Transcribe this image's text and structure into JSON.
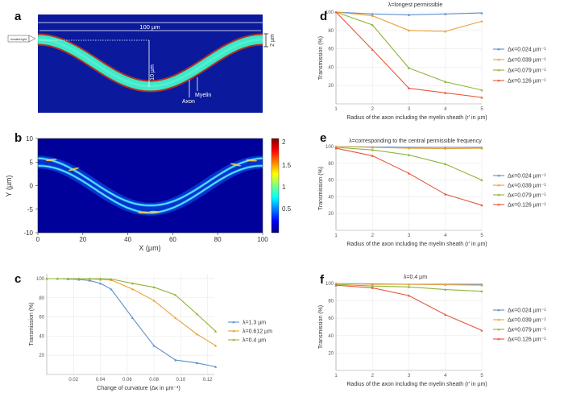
{
  "panel_a": {
    "letter": "a",
    "label_100um": "100 µm",
    "label_10um": "10 µm",
    "label_2um": "2 µm",
    "label_incident": "Incident light",
    "label_myelin": "Myelin",
    "label_axon": "Axon",
    "colors": {
      "bg": "#0b1a9c",
      "core": "#3ee8c8",
      "sheath": "#b03024"
    }
  },
  "panel_b": {
    "letter": "b",
    "xlabel": "X (µm)",
    "ylabel": "Y (µm)",
    "xticks": [
      "0",
      "20",
      "40",
      "60",
      "80",
      "100"
    ],
    "yticks": [
      "10",
      "5",
      "0",
      "-5",
      "-10"
    ],
    "cbar_ticks": [
      "2",
      "1.5",
      "1",
      "0.5"
    ]
  },
  "chart_data": [
    {
      "panel": "c",
      "type": "line",
      "title": "",
      "xlabel": "Change of curvature (Δκ in µm⁻¹)",
      "ylabel": "Transmission (%)",
      "xlim": [
        0,
        0.125
      ],
      "ylim": [
        0,
        105
      ],
      "xticks": [
        0.02,
        0.04,
        0.06,
        0.08,
        0.1,
        0.12
      ],
      "xtick_labels": [
        "0.02",
        "0.04",
        "0.06",
        "0.08",
        "0.10",
        "0.12"
      ],
      "yticks": [
        20,
        40,
        60,
        80,
        100
      ],
      "legend_position": "right",
      "x": [
        0.0,
        0.008,
        0.016,
        0.024,
        0.032,
        0.04,
        0.048,
        0.064,
        0.08,
        0.096,
        0.112,
        0.126
      ],
      "series": [
        {
          "name": "λ=1.3 µm",
          "color": "#5b8fc9",
          "values": [
            100,
            100,
            99.5,
            99,
            98,
            95,
            89,
            59,
            30,
            15,
            12,
            8
          ]
        },
        {
          "name": "λ=0.612 µm",
          "color": "#e8a33a",
          "values": [
            100,
            100,
            100,
            100,
            99.5,
            99,
            98.5,
            89,
            77,
            59,
            42,
            30
          ]
        },
        {
          "name": "λ=0.4 µm",
          "color": "#8fb43a",
          "values": [
            100,
            100,
            100,
            100,
            100,
            100,
            99.5,
            95,
            91,
            83,
            63,
            45
          ]
        }
      ]
    },
    {
      "panel": "d",
      "type": "line",
      "title": "λ=longest permissible",
      "xlabel": "Radius of the axon including the myelin sheath (r' in µm)",
      "ylabel": "Transmission (%)",
      "xlim": [
        1,
        5
      ],
      "ylim": [
        0,
        100
      ],
      "xticks": [
        1,
        2,
        3,
        4,
        5
      ],
      "yticks": [
        20,
        40,
        60,
        80,
        100
      ],
      "legend_position": "right",
      "x": [
        1,
        2,
        3,
        4,
        5
      ],
      "series": [
        {
          "name": "Δκ=0.024 µm⁻¹",
          "color": "#5b8fc9",
          "values": [
            100,
            98,
            97,
            98,
            99
          ]
        },
        {
          "name": "Δκ=0.039 µm⁻¹",
          "color": "#e8a33a",
          "values": [
            100,
            96,
            80,
            79,
            90
          ]
        },
        {
          "name": "Δκ=0.079 µm⁻¹",
          "color": "#8fb43a",
          "values": [
            100,
            86,
            39,
            24,
            15
          ]
        },
        {
          "name": "Δκ=0.126 µm⁻¹",
          "color": "#e8553a",
          "values": [
            100,
            59,
            17,
            12,
            7
          ]
        }
      ]
    },
    {
      "panel": "e",
      "type": "line",
      "title": "λ=corresponding to the central permissible frequency",
      "xlabel": "Radius of the axon including the myelin sheath (r' in µm)",
      "ylabel": "Transmission (%)",
      "xlim": [
        1,
        5
      ],
      "ylim": [
        0,
        100
      ],
      "xticks": [
        1,
        2,
        3,
        4,
        5
      ],
      "yticks": [
        20,
        40,
        60,
        80,
        100
      ],
      "legend_position": "right",
      "x": [
        1,
        2,
        3,
        4,
        5
      ],
      "series": [
        {
          "name": "Δκ=0.024 µm⁻¹",
          "color": "#5b8fc9",
          "values": [
            100,
            99.5,
            99,
            99,
            99
          ]
        },
        {
          "name": "Δκ=0.039 µm⁻¹",
          "color": "#e8a33a",
          "values": [
            100,
            99,
            98,
            97.5,
            98
          ]
        },
        {
          "name": "Δκ=0.079 µm⁻¹",
          "color": "#8fb43a",
          "values": [
            99,
            96,
            90,
            79,
            60
          ]
        },
        {
          "name": "Δκ=0.126 µm⁻¹",
          "color": "#e8553a",
          "values": [
            98,
            89,
            68,
            43,
            30
          ]
        }
      ]
    },
    {
      "panel": "f",
      "type": "line",
      "title": "λ=0.4 µm",
      "xlabel": "Radius of the axon including the myelin sheath (r' in µm)",
      "ylabel": "Transmission (%)",
      "xlim": [
        1,
        5
      ],
      "ylim": [
        0,
        100
      ],
      "xticks": [
        1,
        2,
        3,
        4,
        5
      ],
      "yticks": [
        20,
        40,
        60,
        80,
        100
      ],
      "legend_position": "right",
      "x": [
        1,
        2,
        3,
        4,
        5
      ],
      "series": [
        {
          "name": "Δκ=0.024 µm⁻¹",
          "color": "#5b8fc9",
          "values": [
            100,
            99.5,
            99,
            99,
            99
          ]
        },
        {
          "name": "Δκ=0.039 µm⁻¹",
          "color": "#e8a33a",
          "values": [
            100,
            99,
            99,
            98.5,
            98
          ]
        },
        {
          "name": "Δκ=0.079 µm⁻¹",
          "color": "#8fb43a",
          "values": [
            99,
            97,
            96,
            93,
            91
          ]
        },
        {
          "name": "Δκ=0.126 µm⁻¹",
          "color": "#e8553a",
          "values": [
            98,
            95,
            86,
            64,
            46
          ]
        }
      ]
    }
  ]
}
